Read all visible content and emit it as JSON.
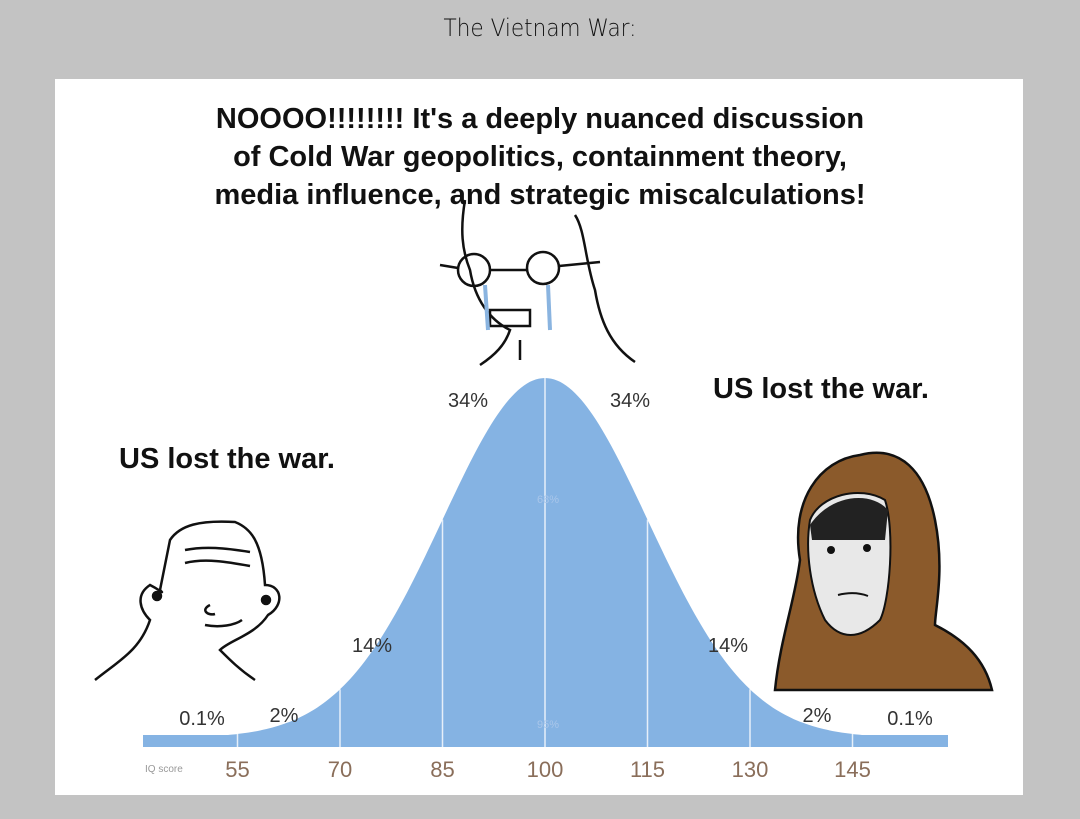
{
  "title": "The Vietnam War:",
  "captions": {
    "center": [
      "NOOOO!!!!!!!! It's a deeply nuanced discussion",
      "of Cold War geopolitics, containment theory,",
      "media influence, and strategic miscalculations!"
    ],
    "left": "US lost the war.",
    "right": "US lost the war."
  },
  "chart_data": {
    "type": "area",
    "distribution": "normal",
    "mean": 100,
    "sd": 15,
    "xlabel": "IQ score",
    "x_ticks": [
      "55",
      "70",
      "85",
      "100",
      "115",
      "130",
      "145"
    ],
    "segment_labels": [
      "0.1%",
      "2%",
      "14%",
      "34%",
      "34%",
      "14%",
      "2%",
      "0.1%"
    ],
    "inner_labels": [
      "68%",
      "95%"
    ],
    "fill_color": "#85b3e3",
    "tick_color": "#8a6e5a"
  },
  "characters": {
    "left": "wojak-smiling",
    "center": "wojak-crying-nerd",
    "right": "hooded-figure"
  }
}
